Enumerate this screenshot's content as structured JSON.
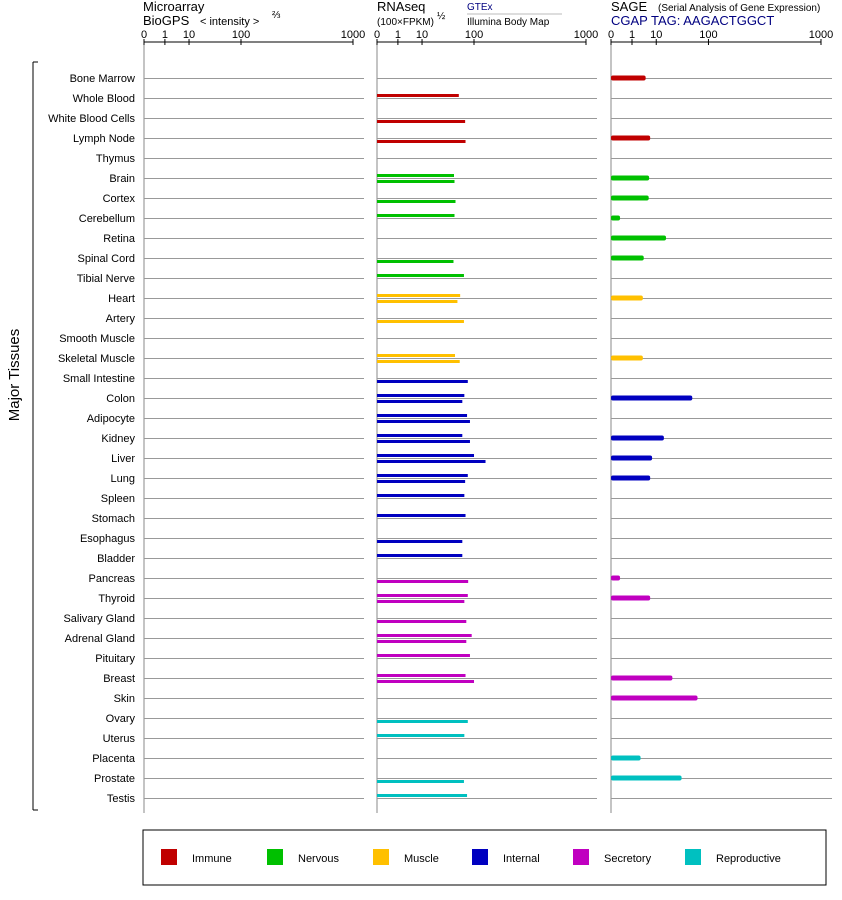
{
  "headers": {
    "microarray_line1": "Microarray",
    "microarray_line2": "BioGPS",
    "microarray_scale": "< intensity >",
    "microarray_exp": "⅔",
    "rnaseq_line1": "RNAseq",
    "rnaseq_gtex": "GTEx",
    "rnaseq_scale": "(100×FPKM)",
    "rnaseq_exp": "½",
    "rnaseq_ibm": "Illumina Body Map",
    "sage_line1": "SAGE",
    "sage_subtitle": "(Serial Analysis of Gene Expression)",
    "sage_tag": "CGAP TAG: AAGACTGGCT"
  },
  "axis_ticks": [
    "0",
    "1",
    "10",
    "100",
    "1000"
  ],
  "group_label": "Major Tissues",
  "colors": {
    "Immune": "#c00000",
    "Nervous": "#00c000",
    "Muscle": "#ffc000",
    "Internal": "#0000c0",
    "Secretory": "#c000c0",
    "Reproductive": "#00c0c0"
  },
  "legend": [
    "Immune",
    "Nervous",
    "Muscle",
    "Internal",
    "Secretory",
    "Reproductive"
  ],
  "chart_data": {
    "type": "bar",
    "orientation": "horizontal",
    "x_scale": "power",
    "xlim": [
      0,
      1000
    ],
    "panels": [
      "Microarray",
      "RNAseq",
      "SAGE"
    ],
    "categories": [
      "Bone Marrow",
      "Whole Blood",
      "White Blood Cells",
      "Lymph Node",
      "Thymus",
      "Brain",
      "Cortex",
      "Cerebellum",
      "Retina",
      "Spinal Cord",
      "Tibial Nerve",
      "Heart",
      "Artery",
      "Smooth Muscle",
      "Skeletal Muscle",
      "Small Intestine",
      "Colon",
      "Adipocyte",
      "Kidney",
      "Liver",
      "Lung",
      "Spleen",
      "Stomach",
      "Esophagus",
      "Bladder",
      "Pancreas",
      "Thyroid",
      "Salivary Gland",
      "Adrenal Gland",
      "Pituitary",
      "Breast",
      "Skin",
      "Ovary",
      "Uterus",
      "Placenta",
      "Prostate",
      "Testis"
    ],
    "systems": [
      "Immune",
      "Immune",
      "Immune",
      "Immune",
      "Immune",
      "Nervous",
      "Nervous",
      "Nervous",
      "Nervous",
      "Nervous",
      "Nervous",
      "Muscle",
      "Muscle",
      "Muscle",
      "Muscle",
      "Internal",
      "Internal",
      "Internal",
      "Internal",
      "Internal",
      "Internal",
      "Internal",
      "Internal",
      "Internal",
      "Internal",
      "Secretory",
      "Secretory",
      "Secretory",
      "Secretory",
      "Secretory",
      "Secretory",
      "Secretory",
      "Reproductive",
      "Reproductive",
      "Reproductive",
      "Reproductive",
      "Reproductive"
    ],
    "series": [
      {
        "name": "RNAseq GTEx",
        "values": [
          null,
          60,
          null,
          null,
          null,
          50,
          null,
          51,
          null,
          null,
          72,
          63,
          null,
          null,
          52,
          null,
          73,
          80,
          68,
          100,
          82,
          73,
          76,
          null,
          68,
          null,
          82,
          null,
          93,
          88,
          76,
          null,
          null,
          73,
          null,
          null,
          80
        ]
      },
      {
        "name": "RNAseq Illumina Body Map",
        "values": [
          null,
          null,
          75,
          76,
          null,
          51,
          53,
          null,
          null,
          49,
          null,
          57,
          72,
          null,
          62,
          82,
          68,
          88,
          88,
          140,
          75,
          null,
          null,
          68,
          null,
          83,
          73,
          78,
          78,
          null,
          100,
          null,
          82,
          null,
          null,
          72,
          null
        ]
      },
      {
        "name": "SAGE",
        "values": [
          4.5,
          null,
          null,
          6.5,
          null,
          6,
          5.8,
          0.08,
          18,
          3.8,
          null,
          3.5,
          null,
          null,
          3.5,
          null,
          58,
          null,
          16,
          7.5,
          6.5,
          null,
          null,
          null,
          null,
          0.08,
          6.5,
          null,
          null,
          null,
          25,
          70,
          null,
          null,
          2.8,
          38,
          null
        ]
      }
    ]
  }
}
